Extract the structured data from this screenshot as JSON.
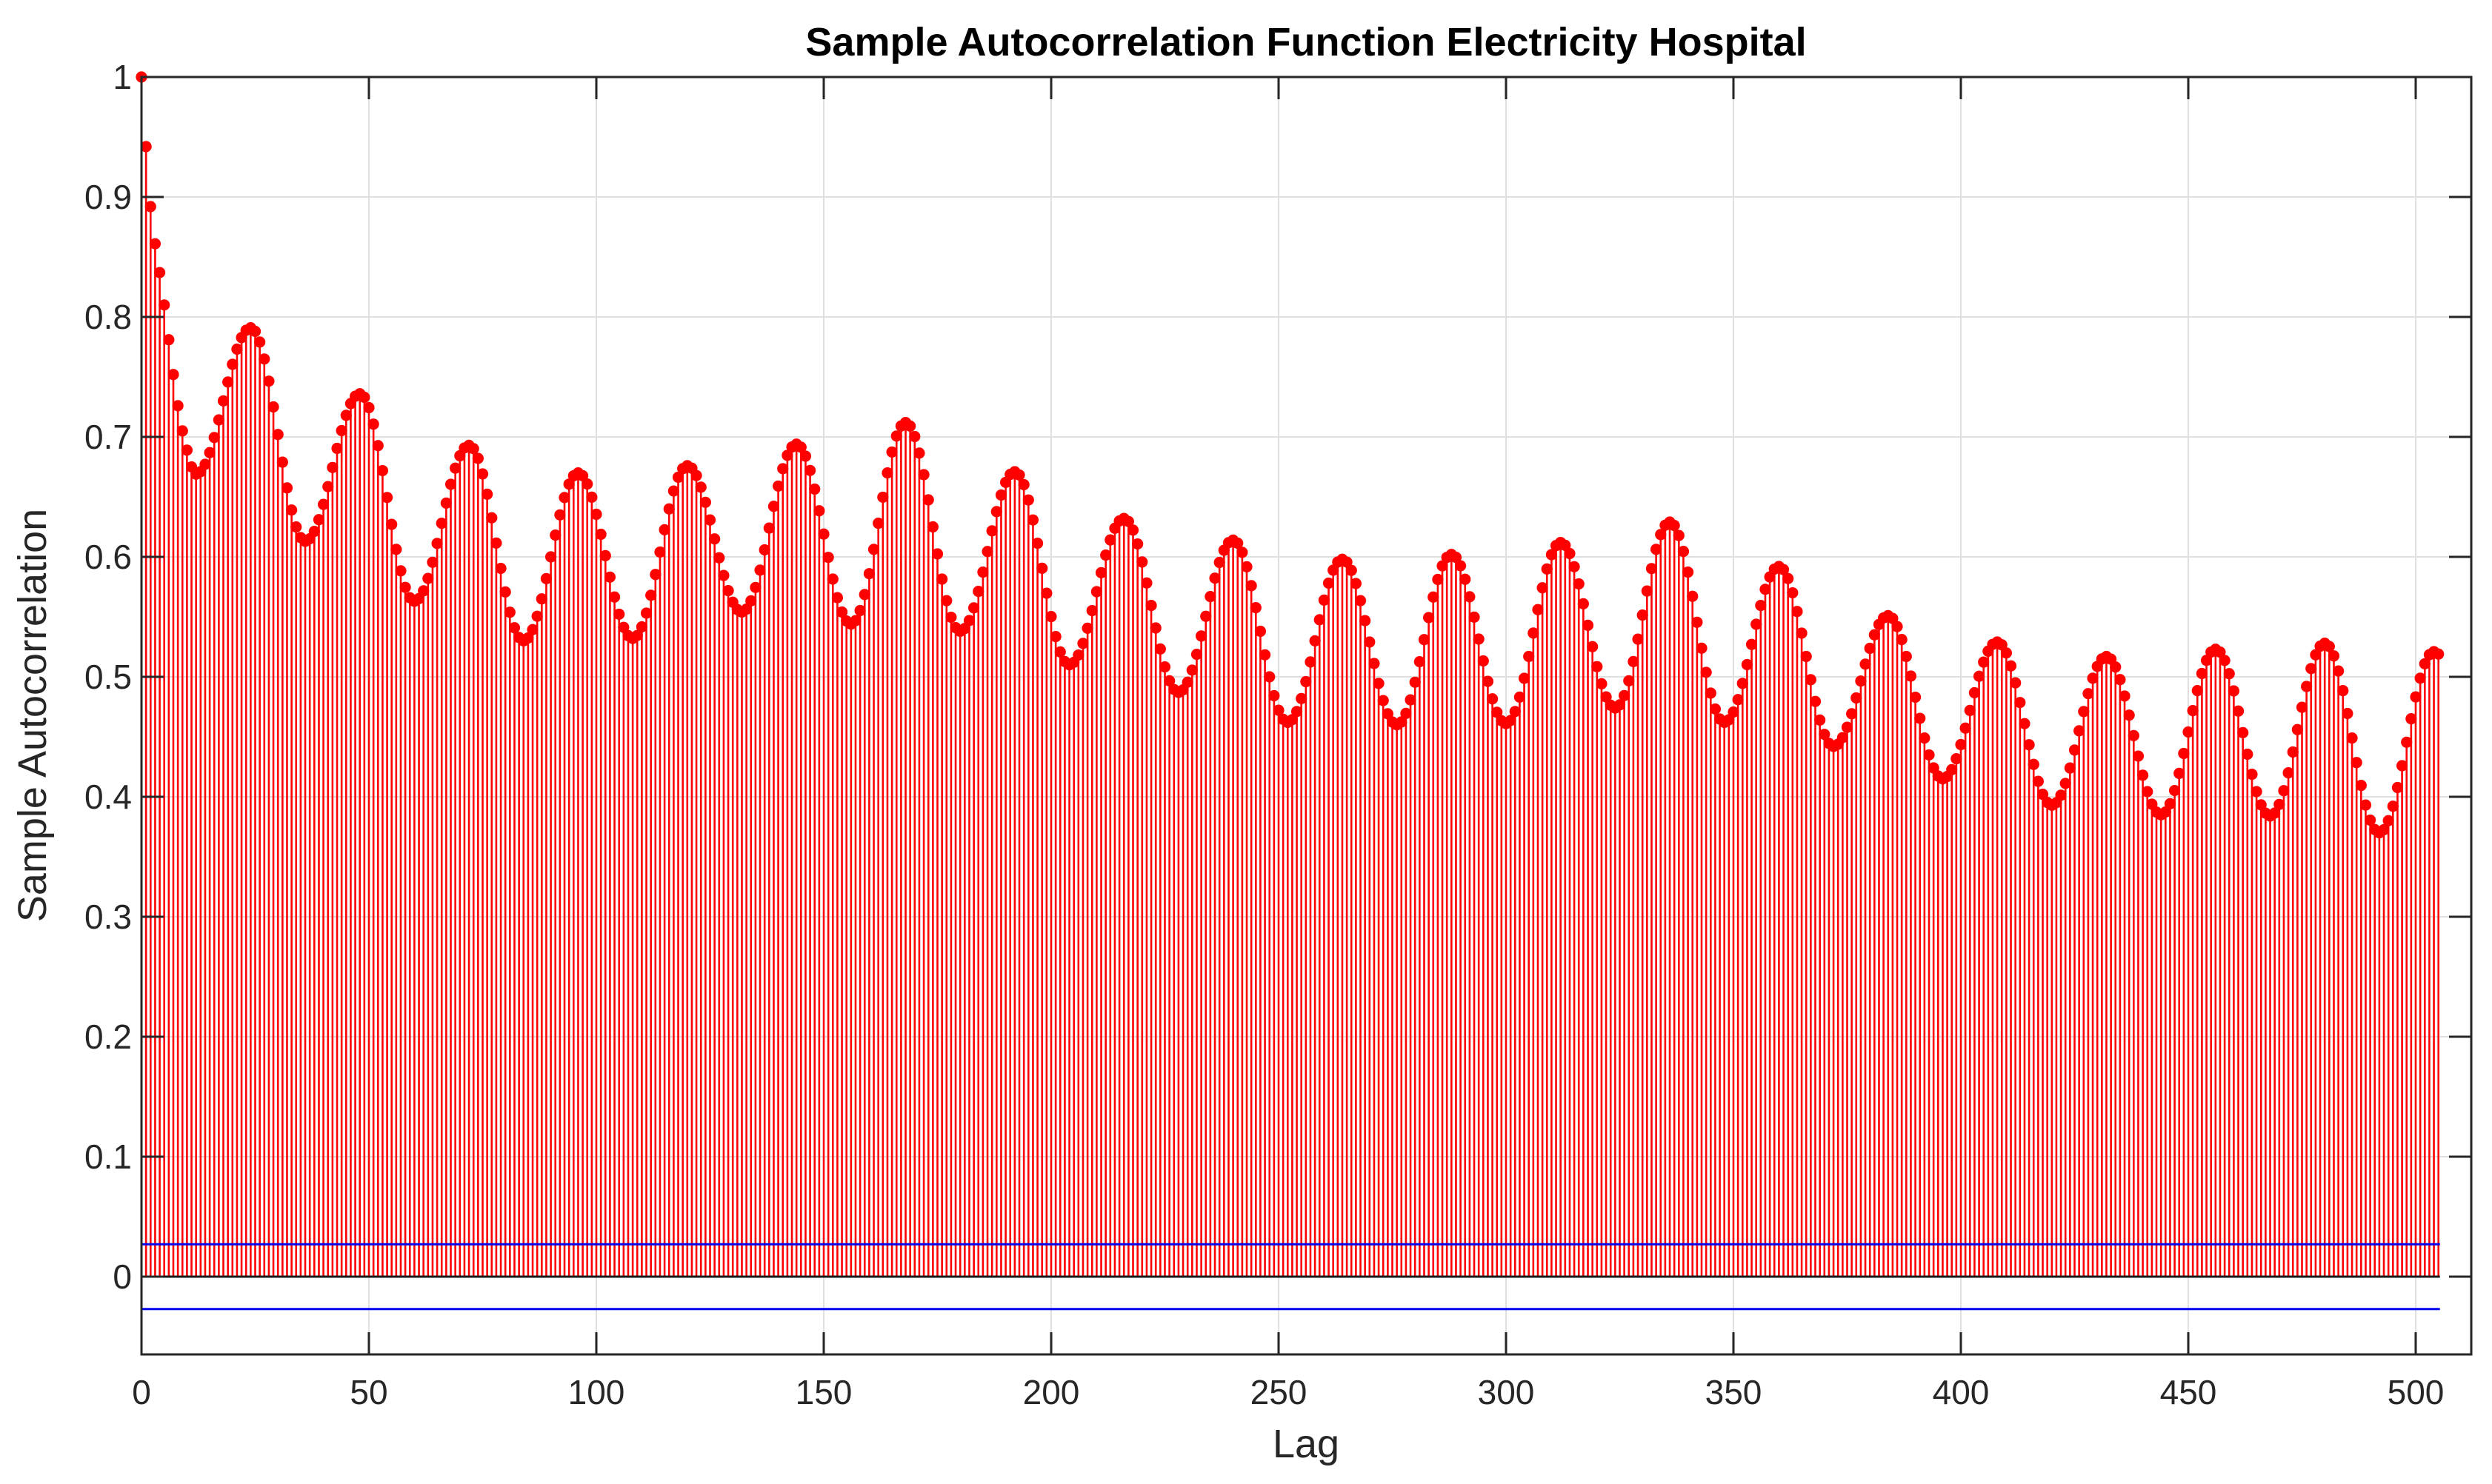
{
  "chart": {
    "title": "Sample Autocorrelation Function Electricity Hospital",
    "xlabel": "Lag",
    "ylabel": "Sample Autocorrelation"
  },
  "colors": {
    "stem": "#ff0000",
    "marker": "#ff0000",
    "confidence_bounds": "#0000ee",
    "zero_line": "#1a1a1a",
    "grid": "#e0e0e0",
    "axis": "#262626",
    "title_text": "#000000",
    "background": "#ffffff"
  },
  "chart_data": {
    "type": "stem",
    "title": "Sample Autocorrelation Function Electricity Hospital",
    "xlabel": "Lag",
    "ylabel": "Sample Autocorrelation",
    "xlim": [
      0,
      512
    ],
    "ylim": [
      -0.065,
      1.0
    ],
    "grid": true,
    "legend": "none",
    "xticks": [
      0,
      50,
      100,
      150,
      200,
      250,
      300,
      350,
      400,
      450,
      500
    ],
    "xtick_labels": [
      "0",
      "50",
      "100",
      "150",
      "200",
      "250",
      "300",
      "350",
      "400",
      "450",
      "500"
    ],
    "yticks": [
      0,
      0.1,
      0.2,
      0.3,
      0.4,
      0.5,
      0.6,
      0.7,
      0.8,
      0.9,
      1
    ],
    "ytick_labels": [
      "0",
      "0.1",
      "0.2",
      "0.3",
      "0.4",
      "0.5",
      "0.6",
      "0.7",
      "0.8",
      "0.9",
      "1"
    ],
    "num_lags": 505,
    "seasonal_period": 24,
    "confidence_bounds": {
      "upper": 0.027,
      "lower": -0.027
    },
    "acf_initial_lags_0_to_11": [
      1.0,
      0.942,
      0.892,
      0.861,
      0.837,
      0.81,
      0.781,
      0.752,
      0.726,
      0.705,
      0.689,
      0.675
    ],
    "acf_peaks": [
      [
        24,
        0.791
      ],
      [
        48,
        0.736
      ],
      [
        72,
        0.693
      ],
      [
        96,
        0.67
      ],
      [
        120,
        0.676
      ],
      [
        144,
        0.694
      ],
      [
        168,
        0.712
      ],
      [
        192,
        0.671
      ],
      [
        216,
        0.632
      ],
      [
        240,
        0.614
      ],
      [
        264,
        0.598
      ],
      [
        288,
        0.602
      ],
      [
        312,
        0.612
      ],
      [
        336,
        0.629
      ],
      [
        360,
        0.592
      ],
      [
        384,
        0.551
      ],
      [
        408,
        0.529
      ],
      [
        432,
        0.517
      ],
      [
        456,
        0.523
      ],
      [
        480,
        0.528
      ],
      [
        504,
        0.521
      ]
    ],
    "acf_troughs": [
      [
        12,
        0.669
      ],
      [
        36,
        0.613
      ],
      [
        60,
        0.563
      ],
      [
        84,
        0.53
      ],
      [
        108,
        0.532
      ],
      [
        132,
        0.554
      ],
      [
        156,
        0.544
      ],
      [
        180,
        0.538
      ],
      [
        204,
        0.51
      ],
      [
        228,
        0.487
      ],
      [
        252,
        0.462
      ],
      [
        276,
        0.46
      ],
      [
        300,
        0.461
      ],
      [
        324,
        0.474
      ],
      [
        348,
        0.462
      ],
      [
        372,
        0.442
      ],
      [
        396,
        0.415
      ],
      [
        420,
        0.393
      ],
      [
        444,
        0.385
      ],
      [
        468,
        0.384
      ],
      [
        492,
        0.37
      ]
    ],
    "acf_tail": [
      [
        505,
        0.519
      ]
    ],
    "interpolation": "cosine-ease between adjacent envelope anchors"
  }
}
